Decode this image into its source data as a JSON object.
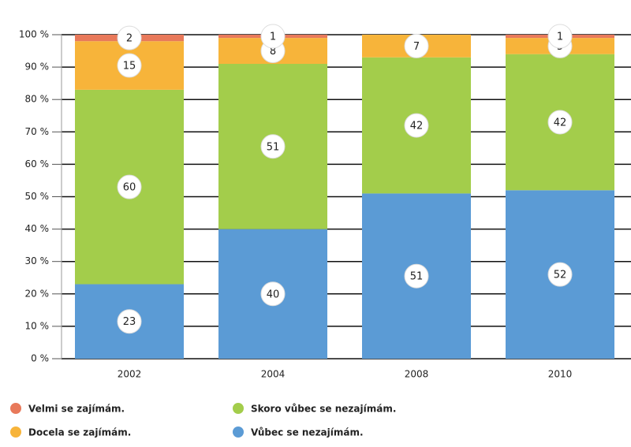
{
  "chart_data": {
    "type": "stacked_bar",
    "categories": [
      "2002",
      "2004",
      "2008",
      "2010"
    ],
    "series": [
      {
        "name": "Vůbec se nezajímám.",
        "color": "#5b9bd5",
        "values": [
          23,
          40,
          51,
          52
        ]
      },
      {
        "name": "Skoro vůbec se nezajímám.",
        "color": "#a3cd4b",
        "values": [
          60,
          51,
          42,
          42
        ]
      },
      {
        "name": "Docela se zajímám.",
        "color": "#f7b43a",
        "values": [
          15,
          8,
          7,
          5
        ]
      },
      {
        "name": "Velmi se zajímám.",
        "color": "#e8795a",
        "values": [
          2,
          1,
          null,
          1
        ]
      }
    ],
    "ylim": [
      0,
      100
    ],
    "yticks": [
      {
        "value": 0,
        "label": "0 %"
      },
      {
        "value": 10,
        "label": "10 %"
      },
      {
        "value": 20,
        "label": "20 %"
      },
      {
        "value": 30,
        "label": "30 %"
      },
      {
        "value": 40,
        "label": "40 %"
      },
      {
        "value": 50,
        "label": "50 %"
      },
      {
        "value": 60,
        "label": "60 %"
      },
      {
        "value": 70,
        "label": "70 %"
      },
      {
        "value": 80,
        "label": "80 %"
      },
      {
        "value": 90,
        "label": "90 %"
      },
      {
        "value": 100,
        "label": "100 %"
      }
    ],
    "grid": true
  }
}
